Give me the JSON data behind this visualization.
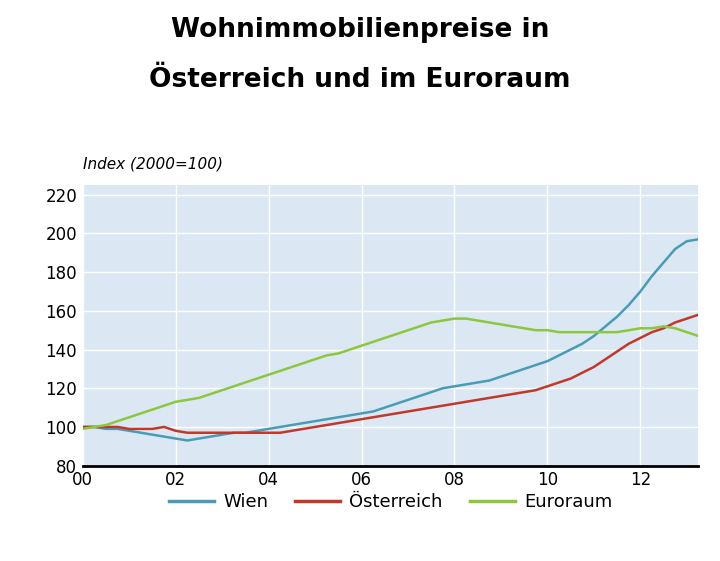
{
  "title_line1": "Wohnimmobilienpreise in",
  "title_line2": "Österreich und im Euroraum",
  "index_label": "Index (2000=100)",
  "ylim": [
    80,
    225
  ],
  "yticks": [
    80,
    100,
    120,
    140,
    160,
    180,
    200,
    220
  ],
  "xtick_labels": [
    "00",
    "02",
    "04",
    "06",
    "08",
    "10",
    "12"
  ],
  "xtick_positions": [
    0,
    8,
    16,
    24,
    32,
    40,
    48
  ],
  "n_points": 54,
  "background_color": "#dbe8f4",
  "fig_bg_color": "#ffffff",
  "wien_color": "#4a9bb5",
  "oesterreich_color": "#c0392b",
  "euroraum_color": "#8dc63f",
  "legend_labels": [
    "Wien",
    "Österreich",
    "Euroraum"
  ],
  "wien": [
    100,
    100,
    99,
    99,
    98,
    97,
    96,
    95,
    94,
    93,
    94,
    95,
    96,
    97,
    97,
    98,
    99,
    100,
    101,
    102,
    103,
    104,
    105,
    106,
    107,
    108,
    110,
    112,
    114,
    116,
    118,
    120,
    121,
    122,
    123,
    124,
    126,
    128,
    130,
    132,
    134,
    137,
    140,
    143,
    147,
    152,
    157,
    163,
    170,
    178,
    185,
    192,
    196,
    197
  ],
  "oesterreich": [
    100,
    100,
    100,
    100,
    99,
    99,
    99,
    100,
    98,
    97,
    97,
    97,
    97,
    97,
    97,
    97,
    97,
    97,
    98,
    99,
    100,
    101,
    102,
    103,
    104,
    105,
    106,
    107,
    108,
    109,
    110,
    111,
    112,
    113,
    114,
    115,
    116,
    117,
    118,
    119,
    121,
    123,
    125,
    128,
    131,
    135,
    139,
    143,
    146,
    149,
    151,
    154,
    156,
    158
  ],
  "euroraum": [
    99,
    100,
    101,
    103,
    105,
    107,
    109,
    111,
    113,
    114,
    115,
    117,
    119,
    121,
    123,
    125,
    127,
    129,
    131,
    133,
    135,
    137,
    138,
    140,
    142,
    144,
    146,
    148,
    150,
    152,
    154,
    155,
    156,
    156,
    155,
    154,
    153,
    152,
    151,
    150,
    150,
    149,
    149,
    149,
    149,
    149,
    149,
    150,
    151,
    151,
    152,
    151,
    149,
    147
  ]
}
